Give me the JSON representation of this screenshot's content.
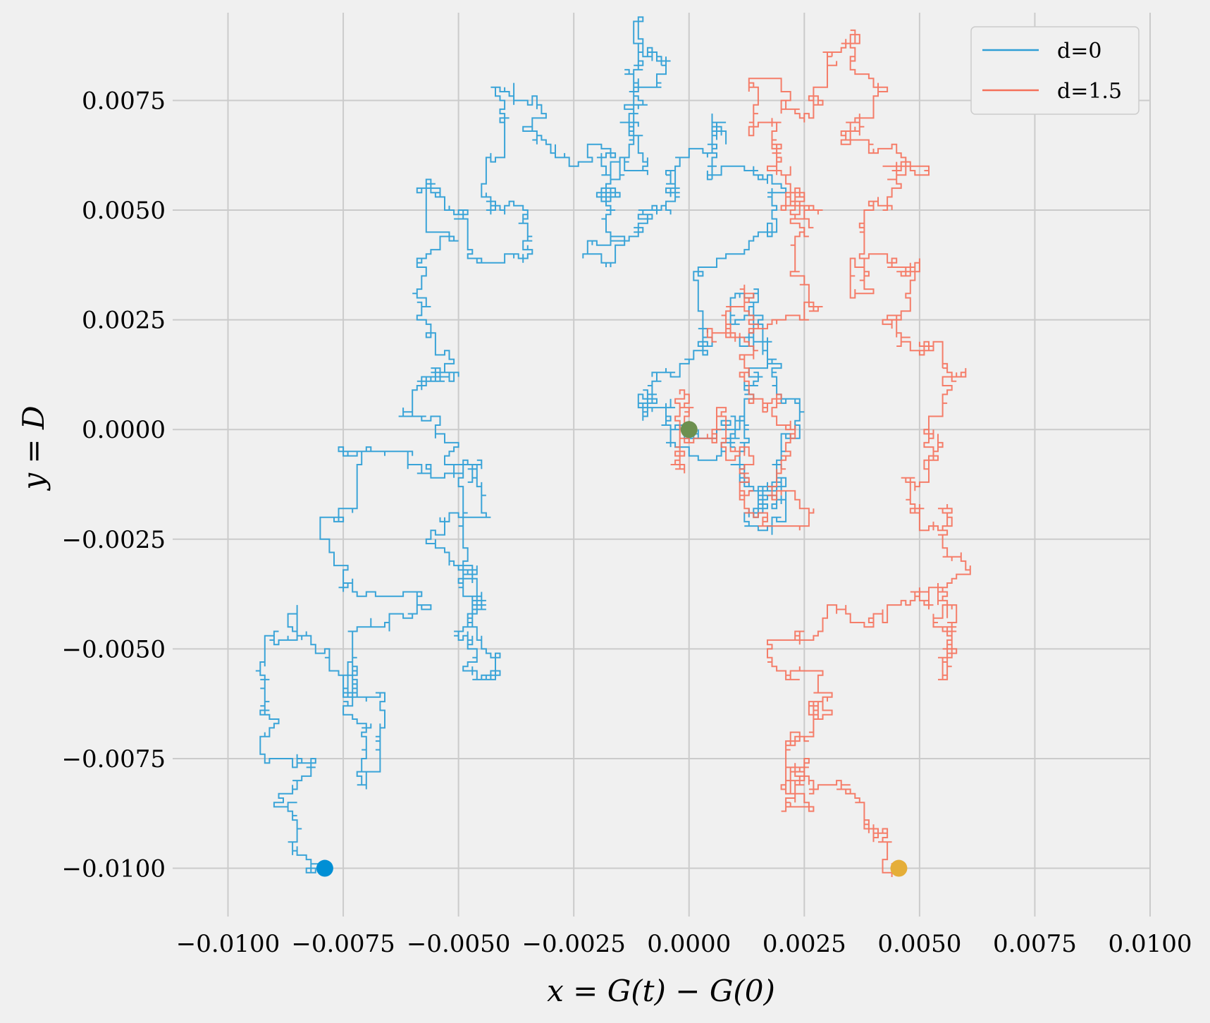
{
  "chart_data": {
    "type": "line",
    "title": "",
    "xlabel": "x = G(t) − G(0)",
    "ylabel": "y = D",
    "xlim": [
      -0.0112,
      0.01
    ],
    "ylim": [
      -0.0111,
      0.0095
    ],
    "grid": true,
    "legend_position": "top-right",
    "x_ticks": [
      -0.01,
      -0.0075,
      -0.005,
      -0.0025,
      0.0,
      0.0025,
      0.005,
      0.0075,
      0.01
    ],
    "x_tick_labels": [
      "−0.0100",
      "−0.0075",
      "−0.0050",
      "−0.0025",
      "0.0000",
      "0.0025",
      "0.0050",
      "0.0075",
      "0.0100"
    ],
    "y_ticks": [
      -0.01,
      -0.0075,
      -0.005,
      -0.0025,
      0.0,
      0.0025,
      0.005,
      0.0075
    ],
    "y_tick_labels": [
      "−0.0100",
      "−0.0075",
      "−0.0050",
      "−0.0025",
      "0.0000",
      "0.0025",
      "0.0050",
      "0.0075"
    ],
    "step": 0.0001,
    "series": [
      {
        "name": "d=0",
        "color": "#2f9fd6",
        "start": [
          -0.0079,
          -0.01
        ],
        "end": [
          0.0,
          0.0
        ],
        "waypoints": [
          [
            -0.0079,
            -0.01
          ],
          [
            -0.0085,
            -0.009
          ],
          [
            -0.009,
            -0.0085
          ],
          [
            -0.0082,
            -0.0075
          ],
          [
            -0.0092,
            -0.0048
          ],
          [
            -0.0087,
            -0.0042
          ],
          [
            -0.0078,
            -0.0055
          ],
          [
            -0.0075,
            -0.0065
          ],
          [
            -0.007,
            -0.008
          ],
          [
            -0.0067,
            -0.0062
          ],
          [
            -0.0073,
            -0.0052
          ],
          [
            -0.0068,
            -0.0045
          ],
          [
            -0.006,
            -0.0042
          ],
          [
            -0.0066,
            -0.0038
          ],
          [
            -0.0075,
            -0.002
          ],
          [
            -0.0072,
            -0.0008
          ],
          [
            -0.0062,
            -0.0005
          ],
          [
            -0.0052,
            -0.001
          ],
          [
            -0.0049,
            -0.0035
          ],
          [
            -0.0046,
            -0.0048
          ],
          [
            -0.0042,
            -0.0057
          ],
          [
            -0.0048,
            -0.0038
          ],
          [
            -0.0055,
            -0.0024
          ],
          [
            -0.0043,
            -0.002
          ],
          [
            -0.0047,
            -0.0008
          ],
          [
            -0.006,
            0.0008
          ],
          [
            -0.005,
            0.0012
          ],
          [
            -0.0055,
            0.0022
          ],
          [
            -0.0058,
            0.0038
          ],
          [
            -0.0052,
            0.0045
          ],
          [
            -0.0057,
            0.0055
          ],
          [
            -0.0048,
            0.005
          ],
          [
            -0.004,
            0.004
          ],
          [
            -0.0035,
            0.005
          ],
          [
            -0.0043,
            0.0062
          ],
          [
            -0.004,
            0.0078
          ],
          [
            -0.0033,
            0.0068
          ],
          [
            -0.0025,
            0.006
          ],
          [
            -0.002,
            0.0065
          ],
          [
            -0.0017,
            0.0058
          ],
          [
            -0.0013,
            0.0062
          ],
          [
            -0.0012,
            0.0082
          ],
          [
            -0.0011,
            0.009
          ],
          [
            -0.0009,
            0.0085
          ],
          [
            -0.0012,
            0.0068
          ],
          [
            -0.0009,
            0.0058
          ],
          [
            -0.0018,
            0.005
          ],
          [
            -0.0022,
            0.004
          ],
          [
            -0.0018,
            0.0038
          ],
          [
            -0.001,
            0.0048
          ],
          [
            -0.0004,
            0.005
          ],
          [
            -0.0003,
            0.006
          ],
          [
            0.0004,
            0.0062
          ],
          [
            0.0008,
            0.007
          ],
          [
            0.0012,
            0.006
          ],
          [
            0.0018,
            0.0055
          ],
          [
            0.0015,
            0.0045
          ],
          [
            0.0008,
            0.004
          ],
          [
            0.0002,
            0.0032
          ],
          [
            0.0003,
            0.0018
          ],
          [
            -0.0008,
            0.0008
          ],
          [
            -0.001,
            0.0002
          ],
          [
            -0.0005,
            0.0005
          ],
          [
            -0.0004,
            -0.0004
          ],
          [
            0.0002,
            -0.0006
          ],
          [
            0.0008,
            -0.0003
          ],
          [
            0.0012,
            0.0008
          ],
          [
            0.0018,
            0.0015
          ],
          [
            0.0016,
            0.0025
          ],
          [
            0.0009,
            0.003
          ],
          [
            0.0014,
            0.002
          ],
          [
            0.002,
            0.0008
          ],
          [
            0.0024,
            -0.0002
          ],
          [
            0.002,
            -0.0012
          ],
          [
            0.0015,
            -0.0018
          ],
          [
            0.0018,
            -0.0024
          ],
          [
            0.002,
            -0.0013
          ],
          [
            0.0012,
            0.0002
          ],
          [
            0.0006,
            -0.0002
          ],
          [
            0.0,
            0.0
          ]
        ]
      },
      {
        "name": "d=1.5",
        "color": "#f5705a",
        "start": [
          0.00455,
          -0.01
        ],
        "end": [
          0.0,
          0.0
        ],
        "waypoints": [
          [
            0.00455,
            -0.01
          ],
          [
            0.0043,
            -0.0092
          ],
          [
            0.0038,
            -0.0085
          ],
          [
            0.0033,
            -0.008
          ],
          [
            0.0027,
            -0.0082
          ],
          [
            0.0025,
            -0.0075
          ],
          [
            0.0023,
            -0.0086
          ],
          [
            0.0021,
            -0.0072
          ],
          [
            0.0028,
            -0.006
          ],
          [
            0.002,
            -0.0055
          ],
          [
            0.0018,
            -0.005
          ],
          [
            0.0026,
            -0.0048
          ],
          [
            0.003,
            -0.004
          ],
          [
            0.0038,
            -0.0045
          ],
          [
            0.0045,
            -0.004
          ],
          [
            0.0052,
            -0.0036
          ],
          [
            0.0058,
            -0.004
          ],
          [
            0.0056,
            -0.0057
          ],
          [
            0.0054,
            -0.0045
          ],
          [
            0.006,
            -0.003
          ],
          [
            0.0056,
            -0.0018
          ],
          [
            0.0052,
            -0.0022
          ],
          [
            0.0048,
            -0.0012
          ],
          [
            0.0052,
            0.0
          ],
          [
            0.0055,
            0.0012
          ],
          [
            0.0048,
            0.0018
          ],
          [
            0.0042,
            0.0025
          ],
          [
            0.0048,
            0.0035
          ],
          [
            0.004,
            0.004
          ],
          [
            0.0035,
            0.003
          ],
          [
            0.0038,
            0.005
          ],
          [
            0.0045,
            0.006
          ],
          [
            0.0052,
            0.0058
          ],
          [
            0.0045,
            0.0065
          ],
          [
            0.0035,
            0.007
          ],
          [
            0.004,
            0.008
          ],
          [
            0.0035,
            0.009
          ],
          [
            0.003,
            0.0078
          ],
          [
            0.0025,
            0.007
          ],
          [
            0.002,
            0.0075
          ],
          [
            0.0015,
            0.008
          ],
          [
            0.0013,
            0.007
          ],
          [
            0.0018,
            0.006
          ],
          [
            0.002,
            0.005
          ],
          [
            0.0025,
            0.0045
          ],
          [
            0.0022,
            0.0035
          ],
          [
            0.0026,
            0.0028
          ],
          [
            0.002,
            0.0025
          ],
          [
            0.0012,
            0.003
          ],
          [
            0.0008,
            0.0022
          ],
          [
            0.0012,
            0.0012
          ],
          [
            0.0018,
            0.0005
          ],
          [
            0.0022,
            -0.0005
          ],
          [
            0.002,
            -0.0015
          ],
          [
            0.0026,
            -0.002
          ],
          [
            0.0018,
            -0.0022
          ],
          [
            0.0012,
            -0.0018
          ],
          [
            0.0012,
            -0.0008
          ],
          [
            0.0008,
            0.0005
          ],
          [
            0.0004,
            -0.0002
          ],
          [
            -0.0002,
            -0.0008
          ],
          [
            -0.0002,
            0.0008
          ],
          [
            0.0,
            0.0
          ]
        ]
      }
    ],
    "markers": [
      {
        "name": "d=0 start",
        "x": -0.0079,
        "y": -0.01,
        "color": "#008fd5"
      },
      {
        "name": "d=1.5 start",
        "x": 0.00455,
        "y": -0.01,
        "color": "#e5ae38"
      },
      {
        "name": "end",
        "x": 0.0,
        "y": 0.0,
        "color": "#6d904f"
      }
    ]
  }
}
